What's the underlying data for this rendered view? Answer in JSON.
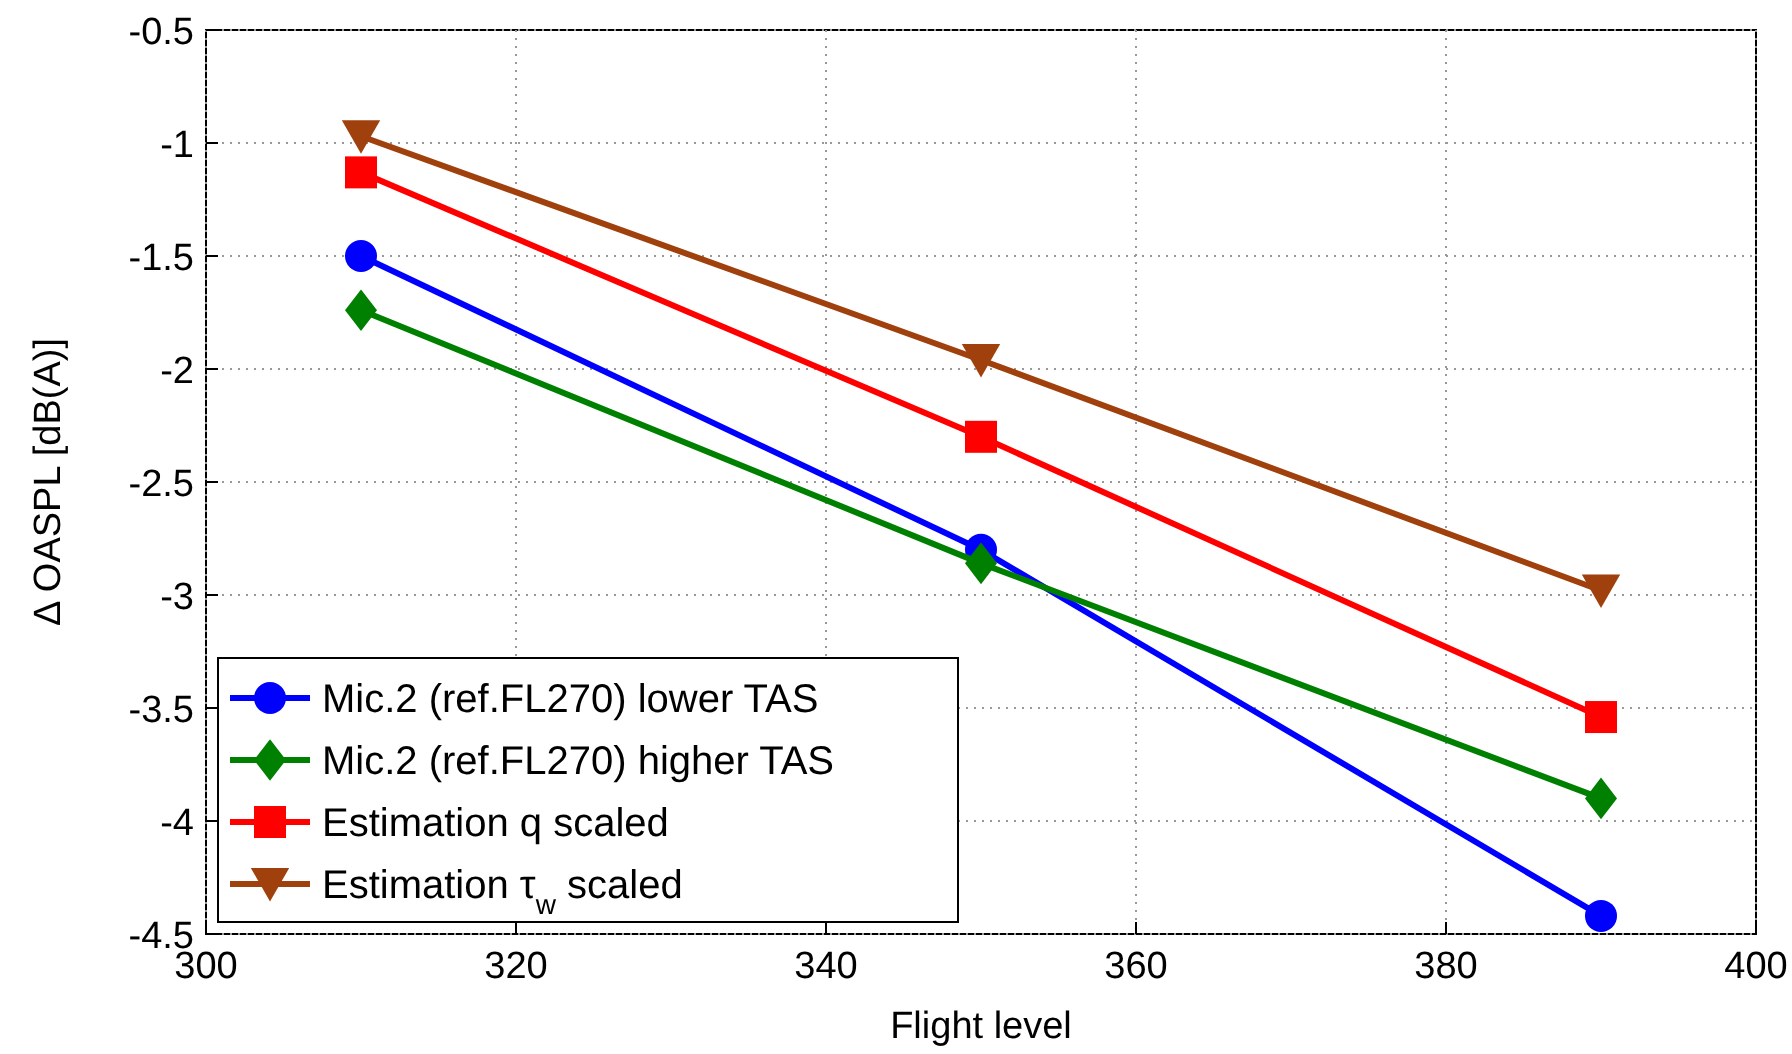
{
  "chart_data": {
    "type": "line",
    "xlabel": "Flight level",
    "ylabel": "Δ OASPL [dB(A)]",
    "x": [
      310,
      350,
      390
    ],
    "xlim": [
      300,
      400
    ],
    "xticks": [
      300,
      320,
      340,
      360,
      380,
      400
    ],
    "ylim": [
      -4.5,
      -0.5
    ],
    "yticks": [
      -4.5,
      -4,
      -3.5,
      -3,
      -2.5,
      -2,
      -1.5,
      -1,
      -0.5
    ],
    "grid": true,
    "legend": "bottom left",
    "line_style": "solid",
    "series": [
      {
        "name": "Mic.2 (ref.FL270) lower TAS",
        "color": "#0000ff",
        "marker": "circle",
        "values": [
          -1.5,
          -2.8,
          -4.42
        ]
      },
      {
        "name": "Mic.2 (ref.FL270) higher TAS",
        "color": "#008000",
        "marker": "diamond",
        "values": [
          -1.74,
          -2.86,
          -3.9
        ]
      },
      {
        "name": "Estimation q scaled",
        "color": "#ff0000",
        "marker": "square",
        "values": [
          -1.13,
          -2.3,
          -3.54
        ]
      },
      {
        "name": "Estimation τ$_{w}$ scaled",
        "color": "#a0410d",
        "marker": "triangle",
        "values": [
          -0.97,
          -1.96,
          -2.98
        ]
      }
    ]
  }
}
